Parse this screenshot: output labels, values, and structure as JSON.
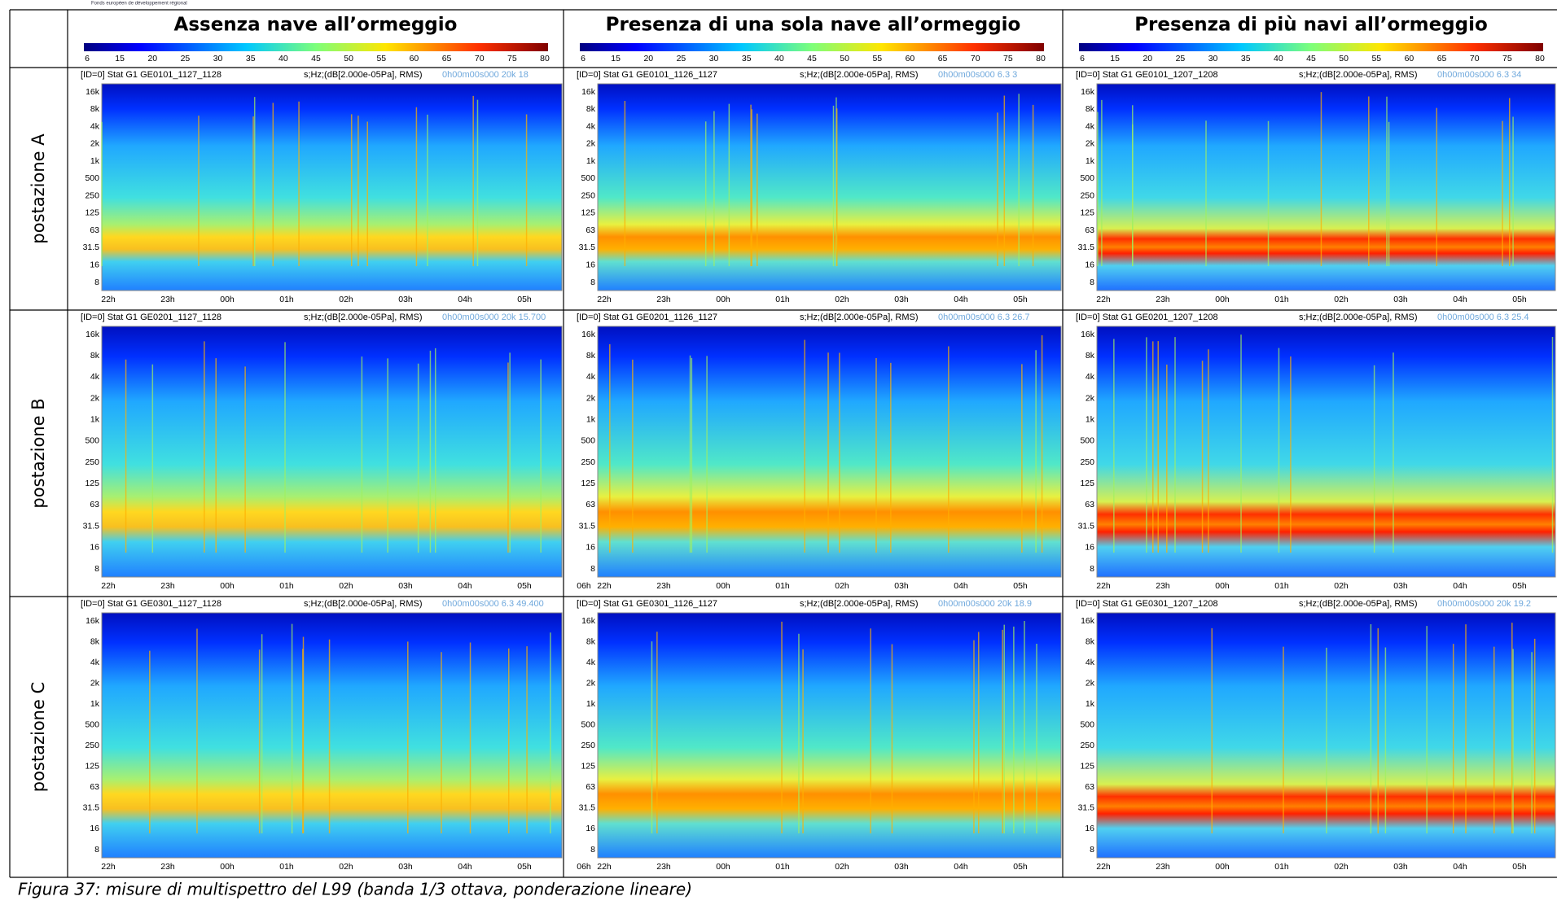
{
  "top_note": "Fonds européen de développement régional",
  "columns": [
    "Assenza nave all’ormeggio",
    "Presenza di una sola nave all’ormeggio",
    "Presenza di più navi all’ormeggio"
  ],
  "colorbar_ticks": [
    "6",
    "15",
    "20",
    "25",
    "30",
    "35",
    "40",
    "45",
    "50",
    "55",
    "60",
    "65",
    "70",
    "75",
    "80"
  ],
  "freq_labels": [
    "16k",
    "8k",
    "4k",
    "2k",
    "1k",
    "500",
    "250",
    "125",
    "63",
    "31.5",
    "16",
    "8"
  ],
  "rows": [
    {
      "label": "postazione A",
      "panels": [
        {
          "id": "[ID=0] Stat G1 GE0101_1127_1128",
          "units": "s;Hz;(dB[2.000e-05Pa], RMS)",
          "meta": "0h00m00s000  20k  18",
          "hours": [
            "22h",
            "23h",
            "00h",
            "01h",
            "02h",
            "03h",
            "04h",
            "05h"
          ]
        },
        {
          "id": "[ID=0] Stat G1 GE0101_1126_1127",
          "units": "s;Hz;(dB[2.000e-05Pa], RMS)",
          "meta": "0h00m00s000  6.3  3",
          "hours": [
            "22h",
            "23h",
            "00h",
            "01h",
            "02h",
            "03h",
            "04h",
            "05h"
          ]
        },
        {
          "id": "[ID=0] Stat G1 GE0101_1207_1208",
          "units": "s;Hz;(dB[2.000e-05Pa], RMS)",
          "meta": "0h00m00s000  6.3  34",
          "hours": [
            "22h",
            "23h",
            "00h",
            "01h",
            "02h",
            "03h",
            "04h",
            "05h"
          ]
        }
      ]
    },
    {
      "label": "postazione B",
      "panels": [
        {
          "id": "[ID=0] Stat G1 GE0201_1127_1128",
          "units": "s;Hz;(dB[2.000e-05Pa], RMS)",
          "meta": "0h00m00s000  20k  15.700",
          "hours": [
            "22h",
            "23h",
            "00h",
            "01h",
            "02h",
            "03h",
            "04h",
            "05h",
            "06h"
          ]
        },
        {
          "id": "[ID=0] Stat G1 GE0201_1126_1127",
          "units": "s;Hz;(dB[2.000e-05Pa], RMS)",
          "meta": "0h00m00s000  6.3  26.7",
          "hours": [
            "22h",
            "23h",
            "00h",
            "01h",
            "02h",
            "03h",
            "04h",
            "05h"
          ]
        },
        {
          "id": "[ID=0] Stat G1 GE0201_1207_1208",
          "units": "s;Hz;(dB[2.000e-05Pa], RMS)",
          "meta": "0h00m00s000  6.3  25.4",
          "hours": [
            "22h",
            "23h",
            "00h",
            "01h",
            "02h",
            "03h",
            "04h",
            "05h"
          ]
        }
      ]
    },
    {
      "label": "postazione C",
      "panels": [
        {
          "id": "[ID=0] Stat G1 GE0301_1127_1128",
          "units": "s;Hz;(dB[2.000e-05Pa], RMS)",
          "meta": "0h00m00s000  6.3  49.400",
          "hours": [
            "22h",
            "23h",
            "00h",
            "01h",
            "02h",
            "03h",
            "04h",
            "05h",
            "06h"
          ]
        },
        {
          "id": "[ID=0] Stat G1 GE0301_1126_1127",
          "units": "s;Hz;(dB[2.000e-05Pa], RMS)",
          "meta": "0h00m00s000  20k  18.9",
          "hours": [
            "22h",
            "23h",
            "00h",
            "01h",
            "02h",
            "03h",
            "04h",
            "05h"
          ]
        },
        {
          "id": "[ID=0] Stat G1 GE0301_1207_1208",
          "units": "s;Hz;(dB[2.000e-05Pa], RMS)",
          "meta": "0h00m00s000  20k  19.2",
          "hours": [
            "22h",
            "23h",
            "00h",
            "01h",
            "02h",
            "03h",
            "04h",
            "05h"
          ]
        }
      ]
    }
  ],
  "caption": "Figura 37: misure di multispettro del L99 (banda 1/3 ottava, ponderazione lineare)"
}
